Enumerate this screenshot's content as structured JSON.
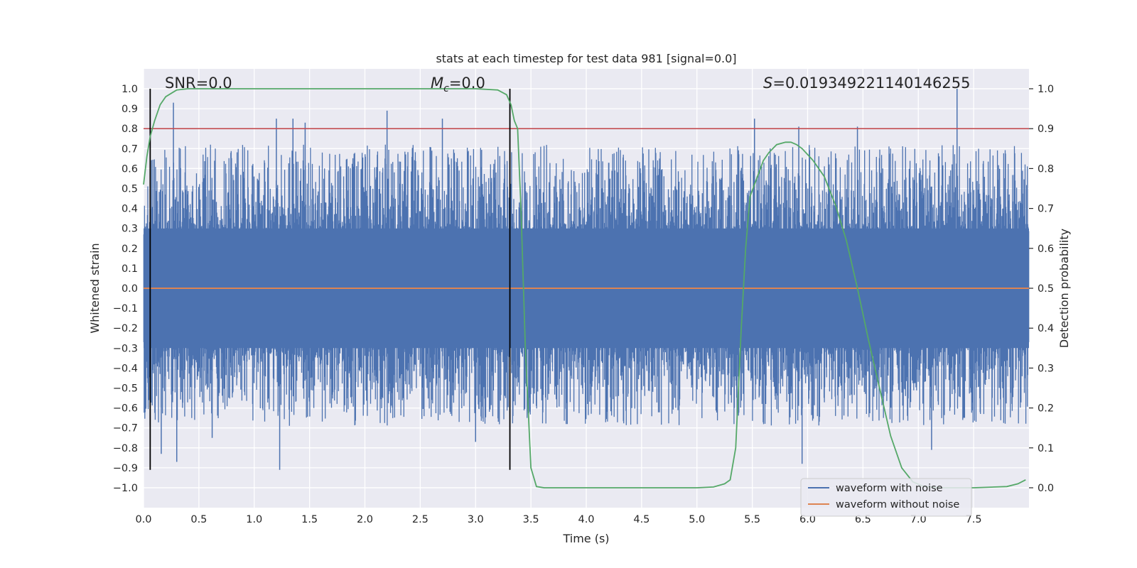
{
  "chart_data": {
    "type": "line",
    "title": "stats at each timestep for test data 981 [signal=0.0]",
    "xlabel": "Time (s)",
    "ylabel": "Whitened strain",
    "y2label": "Detection probability",
    "xlim": [
      0.0,
      8.0
    ],
    "ylim": [
      -1.0,
      1.0
    ],
    "y2lim": [
      -0.048,
      1.048
    ],
    "x_ticks": [
      "0.0",
      "0.5",
      "1.0",
      "1.5",
      "2.0",
      "2.5",
      "3.0",
      "3.5",
      "4.0",
      "4.5",
      "5.0",
      "5.5",
      "6.0",
      "6.5",
      "7.0",
      "7.5"
    ],
    "y_ticks": [
      "1.0",
      "0.9",
      "0.8",
      "0.7",
      "0.6",
      "0.5",
      "0.4",
      "0.3",
      "0.2",
      "0.1",
      "0.0",
      "−0.1",
      "−0.2",
      "−0.3",
      "−0.4",
      "−0.5",
      "−0.6",
      "−0.7",
      "−0.8",
      "−0.9",
      "−1.0"
    ],
    "y2_ticks": [
      "1.0",
      "0.9",
      "0.8",
      "0.7",
      "0.6",
      "0.5",
      "0.4",
      "0.3",
      "0.2",
      "0.1",
      "0.0"
    ],
    "grid": true,
    "legend": {
      "placement": "lower-right",
      "entries": [
        {
          "label": "waveform with noise",
          "color": "#4c72b0"
        },
        {
          "label": "waveform without noise",
          "color": "#dd8452"
        }
      ]
    },
    "annotations": {
      "snr": "SNR=0.0",
      "mc_symbol": "M",
      "mc_sub": "c",
      "mc_value": "=0.0",
      "s_symbol": "S",
      "s_value": "=0.019349221140146255"
    },
    "vertical_markers_x": [
      0.06,
      3.31
    ],
    "threshold_y2": 0.9,
    "series": [
      {
        "name": "waveform with noise",
        "color": "#4c72b0",
        "description_envelope": "noise band roughly ±0.35 with spikes up to 1.0 and down to -0.91",
        "spikes_x": [
          0.27,
          1.2,
          1.35,
          1.46,
          2.2,
          2.7,
          5.52,
          5.92,
          6.45,
          7.35,
          0.16,
          0.62,
          1.23,
          3.0,
          5.95,
          7.12,
          0.3
        ],
        "spikes_y": [
          0.93,
          0.85,
          0.85,
          0.83,
          0.89,
          0.85,
          0.85,
          0.81,
          0.81,
          1.0,
          -0.83,
          -0.75,
          -0.91,
          -0.77,
          -0.88,
          -0.81,
          -0.87
        ]
      },
      {
        "name": "waveform without noise",
        "color": "#dd8452",
        "x": [
          0.0,
          8.0
        ],
        "y": [
          0.0,
          0.0
        ]
      },
      {
        "name": "detection probability",
        "color": "#55a868",
        "axis": "y2",
        "x": [
          0.0,
          0.03,
          0.06,
          0.1,
          0.15,
          0.2,
          0.3,
          0.4,
          0.6,
          1.0,
          2.0,
          3.0,
          3.2,
          3.28,
          3.32,
          3.35,
          3.38,
          3.41,
          3.45,
          3.5,
          3.55,
          3.62,
          3.8,
          4.5,
          5.0,
          5.15,
          5.25,
          5.3,
          5.35,
          5.4,
          5.44,
          5.48,
          5.52,
          5.56,
          5.6,
          5.65,
          5.72,
          5.8,
          5.85,
          5.9,
          5.95,
          6.05,
          6.15,
          6.25,
          6.35,
          6.45,
          6.55,
          6.65,
          6.75,
          6.85,
          6.95,
          7.05,
          7.2,
          7.5,
          7.8,
          7.9,
          7.97
        ],
        "y": [
          0.76,
          0.83,
          0.88,
          0.92,
          0.96,
          0.98,
          0.997,
          1.0,
          1.0,
          1.0,
          1.0,
          1.0,
          0.997,
          0.985,
          0.96,
          0.92,
          0.9,
          0.7,
          0.35,
          0.05,
          0.003,
          0.0,
          0.0,
          0.0,
          0.0,
          0.002,
          0.01,
          0.02,
          0.1,
          0.4,
          0.6,
          0.73,
          0.76,
          0.79,
          0.82,
          0.84,
          0.86,
          0.866,
          0.866,
          0.86,
          0.85,
          0.82,
          0.78,
          0.71,
          0.62,
          0.5,
          0.37,
          0.25,
          0.13,
          0.05,
          0.015,
          0.003,
          0.0,
          0.0,
          0.003,
          0.01,
          0.02
        ]
      }
    ]
  }
}
